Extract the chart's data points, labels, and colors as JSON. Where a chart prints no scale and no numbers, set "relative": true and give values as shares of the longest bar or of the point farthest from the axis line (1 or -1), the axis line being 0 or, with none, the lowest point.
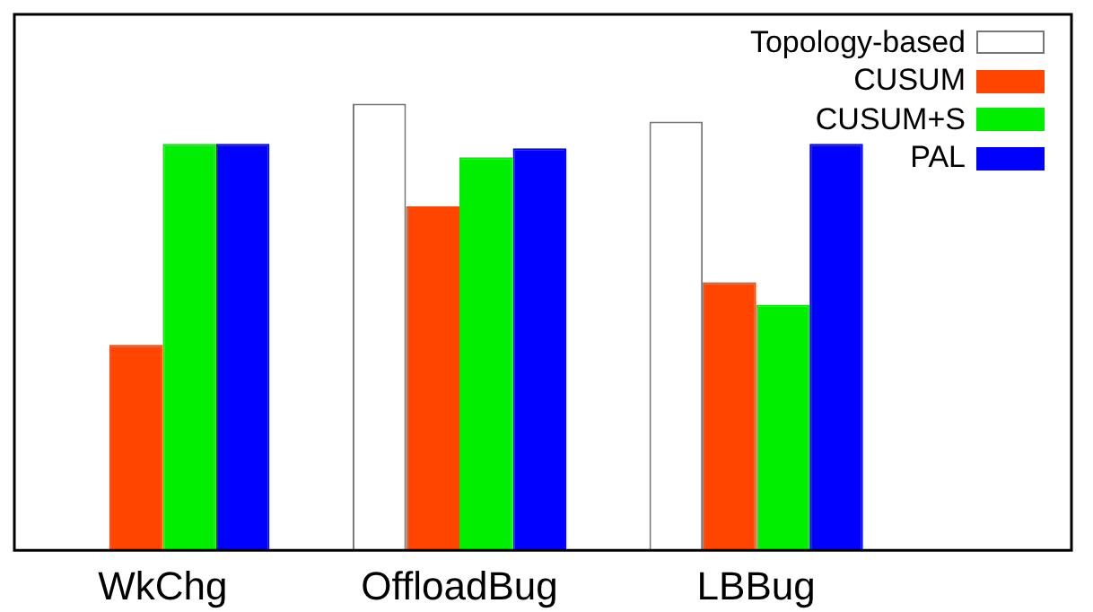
{
  "chart_data": {
    "type": "bar",
    "relative": true,
    "categories": [
      "WkChg",
      "OffloadBug",
      "LBBug"
    ],
    "series": [
      {
        "name": "Topology-based",
        "color": "#ffffff",
        "values": [
          null,
          1,
          0.96
        ]
      },
      {
        "name": "CUSUM",
        "color": "#ff4500",
        "values": [
          0.46,
          0.77,
          0.6
        ]
      },
      {
        "name": "CUSUM+S",
        "color": "#00ee00",
        "values": [
          0.91,
          0.88,
          0.55
        ]
      },
      {
        "name": "PAL",
        "color": "#0000ff",
        "values": [
          0.91,
          0.9,
          0.91
        ]
      }
    ],
    "legend": "top right",
    "grid": false
  }
}
